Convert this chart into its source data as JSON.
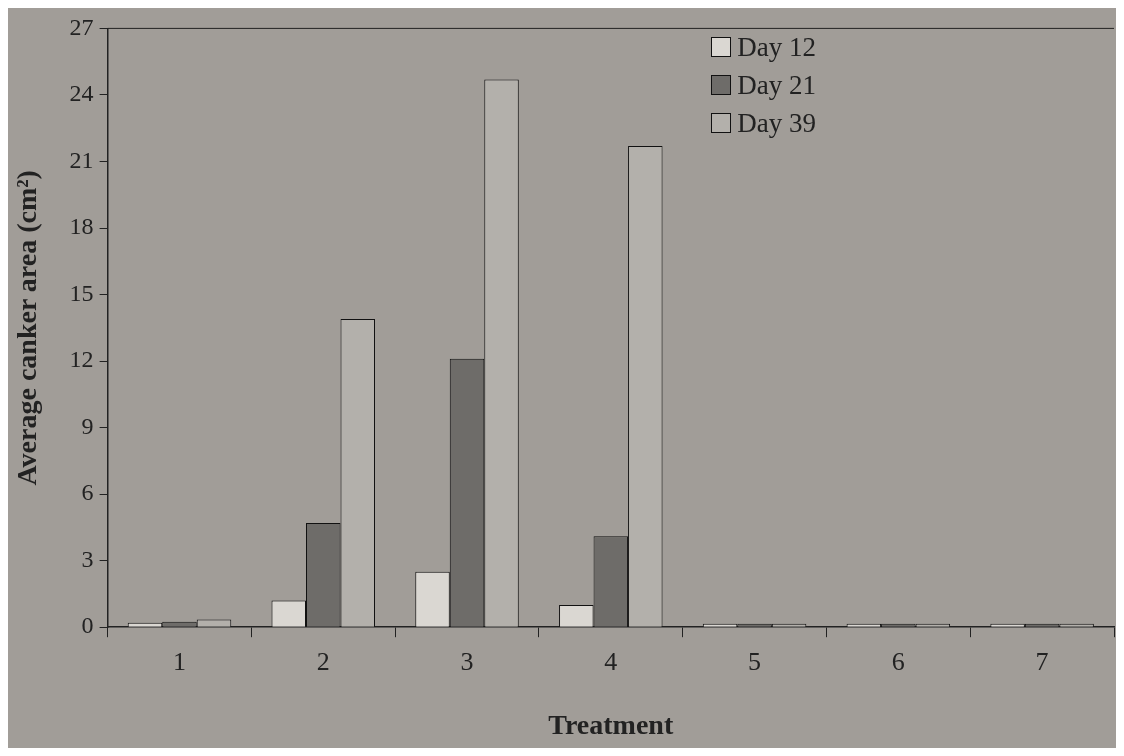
{
  "chart_data": {
    "type": "bar",
    "xlabel": "Treatment",
    "ylabel": "Average canker area (cm²)",
    "categories": [
      "1",
      "2",
      "3",
      "4",
      "5",
      "6",
      "7"
    ],
    "series": [
      {
        "name": "Day 12",
        "color": "#dad7d2",
        "values": [
          0.2,
          1.2,
          2.5,
          1.0,
          0.15,
          0.15,
          0.15
        ]
      },
      {
        "name": "Day 21",
        "color": "#6e6c69",
        "values": [
          0.25,
          4.7,
          12.1,
          4.1,
          0.15,
          0.15,
          0.15
        ]
      },
      {
        "name": "Day 39",
        "color": "#b3b0ab",
        "values": [
          0.35,
          13.9,
          24.7,
          21.7,
          0.15,
          0.15,
          0.15
        ]
      }
    ],
    "ylim": [
      0,
      27
    ],
    "yticks": [
      0,
      3,
      6,
      9,
      12,
      15,
      18,
      21,
      24,
      27
    ],
    "grid": false,
    "legend": "top right"
  }
}
